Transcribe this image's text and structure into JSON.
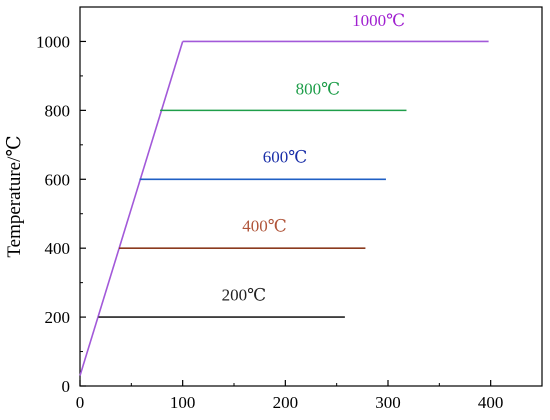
{
  "chart_data": {
    "type": "line",
    "xlim": [
      0,
      450
    ],
    "ylim": [
      0,
      1100
    ],
    "x_ticks": [
      "0",
      "100",
      "200",
      "300",
      "400"
    ],
    "y_ticks": [
      "0",
      "200",
      "400",
      "600",
      "800",
      "1000"
    ],
    "ylabel": "Temperature/℃",
    "xlabel": "",
    "grid": false,
    "ramp": {
      "color": "#a259d9",
      "points": [
        [
          0,
          30
        ],
        [
          100,
          1000
        ]
      ]
    },
    "series": [
      {
        "name": "200℃",
        "color": "#222222",
        "x": [
          18,
          258
        ],
        "y": [
          200,
          200
        ]
      },
      {
        "name": "400℃",
        "color": "#8b3a1e",
        "x": [
          38,
          278
        ],
        "y": [
          400,
          400
        ]
      },
      {
        "name": "600℃",
        "color": "#1f5fc4",
        "x": [
          58,
          298
        ],
        "y": [
          600,
          600
        ]
      },
      {
        "name": "800℃",
        "color": "#1f9e4a",
        "x": [
          78,
          318
        ],
        "y": [
          800,
          800
        ]
      },
      {
        "name": "1000℃",
        "color": "#a259d9",
        "x": [
          100,
          398
        ],
        "y": [
          1000,
          1000
        ]
      }
    ],
    "annotations": [
      {
        "text": "200℃",
        "x": 138,
        "y": 248,
        "color": "#222222"
      },
      {
        "text": "400℃",
        "x": 158,
        "y": 448,
        "color": "#b0553a"
      },
      {
        "text": "600℃",
        "x": 178,
        "y": 649,
        "color": "#1a2fa8"
      },
      {
        "text": "800℃",
        "x": 210,
        "y": 846,
        "color": "#1f9e4a"
      },
      {
        "text": "1000℃",
        "x": 265,
        "y": 1045,
        "color": "#a020d0"
      }
    ]
  }
}
